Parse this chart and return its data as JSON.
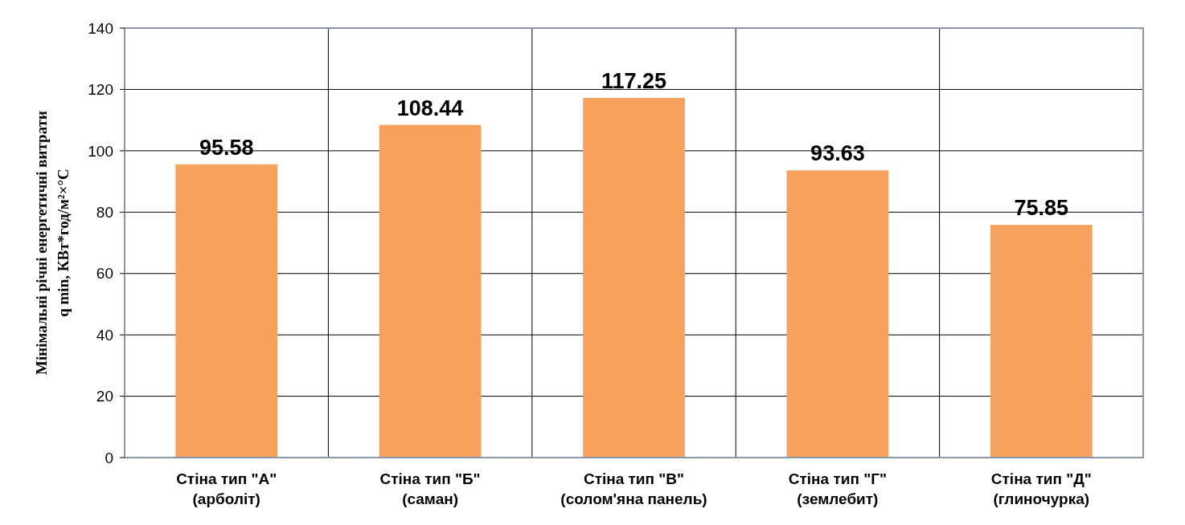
{
  "chart_data": {
    "type": "bar",
    "ylabel": "Мінімальні річні енергетичні витрати\nq min, КВт*год/м²×°С",
    "categories": [
      "Стіна тип \"А\"\n(арболіт)",
      "Стіна тип \"Б\"\n(саман)",
      "Стіна тип \"В\"\n(солом'яна панель)",
      "Стіна тип \"Г\"\n(землебит)",
      "Стіна тип \"Д\"\n(глиночурка)"
    ],
    "values": [
      95.58,
      108.44,
      117.25,
      93.63,
      75.85
    ],
    "color": "#f6a15d",
    "ylim": [
      0,
      140
    ],
    "yticks": [
      0,
      20,
      40,
      60,
      80,
      100,
      120,
      140
    ],
    "grid": true,
    "data_labels": true
  }
}
